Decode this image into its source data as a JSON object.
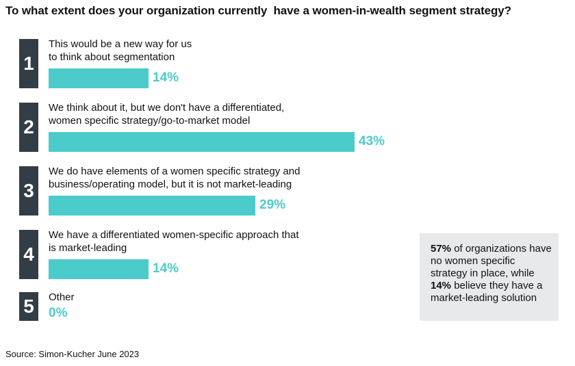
{
  "chart_data": {
    "type": "bar",
    "orientation": "horizontal",
    "title": "To what extent does your organization currently  have a women-in-wealth segment strategy?",
    "xlabel": "",
    "ylabel": "",
    "xlim": [
      0,
      100
    ],
    "categories": [
      {
        "rank": "1",
        "lines": [
          "This would be a new way for us",
          "to think about segmentation"
        ]
      },
      {
        "rank": "2",
        "lines": [
          "We think about it, but we don't have a differentiated,",
          "women specific strategy/go-to-market model"
        ]
      },
      {
        "rank": "3",
        "lines": [
          "We do have elements of a women specific strategy and",
          "business/operating model, but it is not market-leading"
        ]
      },
      {
        "rank": "4",
        "lines": [
          "We have a differentiated women-specific approach that",
          "is market-leading"
        ]
      },
      {
        "rank": "5",
        "lines": [
          "Other"
        ]
      }
    ],
    "values": [
      14,
      43,
      29,
      14,
      0
    ],
    "value_labels": [
      "14%",
      "43%",
      "29%",
      "14%",
      "0%"
    ],
    "unit": "%"
  },
  "callout": {
    "part1_bold": "57%",
    "part1_text": " of organizations have no women specific strategy in place, while ",
    "part2_bold": "14%",
    "part2_text": " believe they have a market-leading solution"
  },
  "source": "Source: Simon-Kucher June 2023",
  "colors": {
    "bar": "#4ccbcb",
    "number_box": "#333d45",
    "callout_bg": "#e8e9ea"
  }
}
